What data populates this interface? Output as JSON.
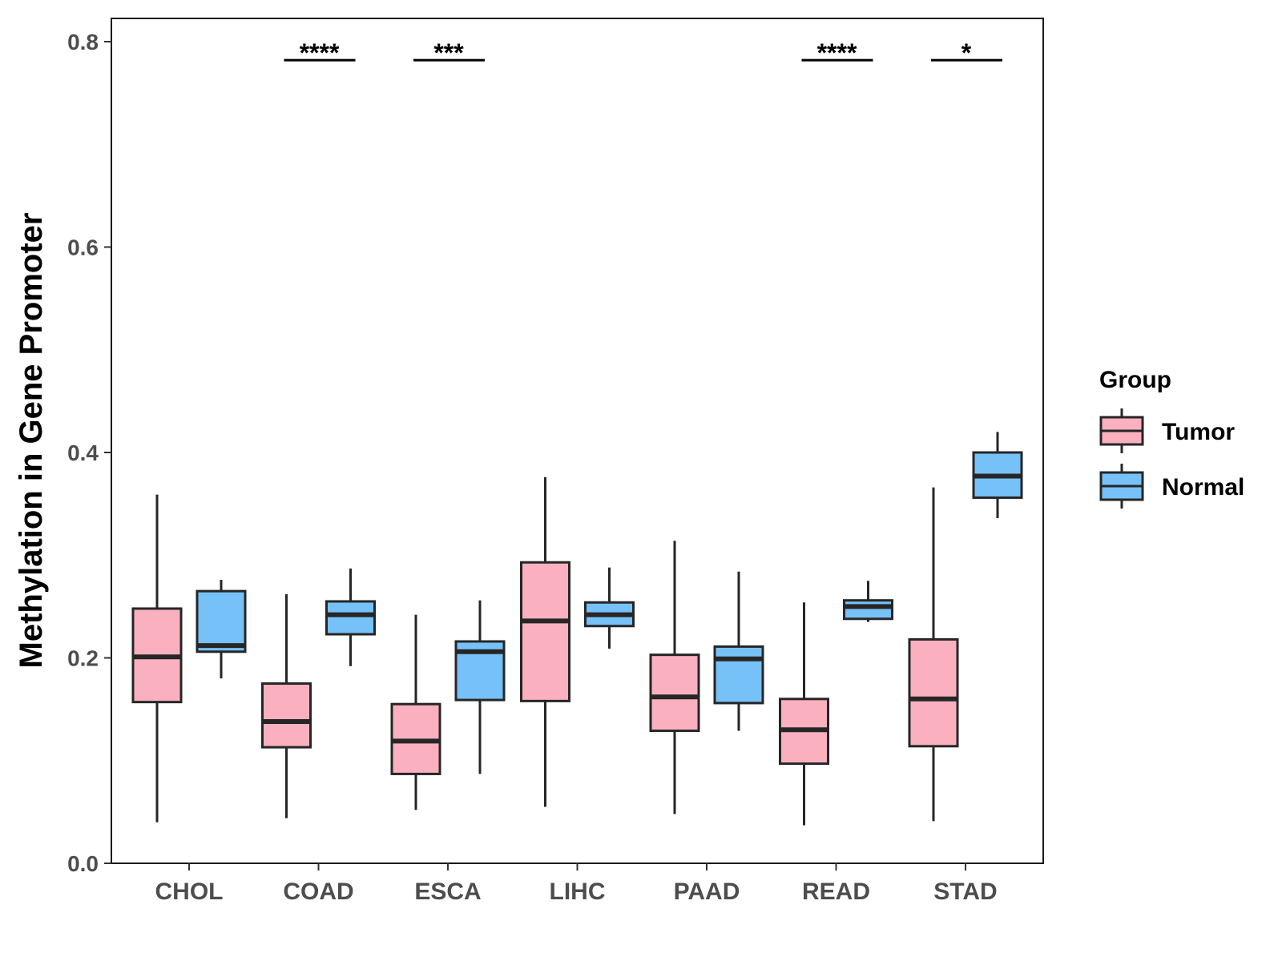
{
  "chart_data": {
    "type": "boxplot",
    "title": "",
    "xlabel": "",
    "ylabel": "Methylation in Gene Promoter",
    "ylim": [
      0,
      0.82
    ],
    "yticks": [
      "0.0",
      "0.2",
      "0.4",
      "0.6",
      "0.8"
    ],
    "ytick_values": [
      0,
      0.2,
      0.4,
      0.6,
      0.8
    ],
    "categories": [
      "CHOL",
      "COAD",
      "ESCA",
      "LIHC",
      "PAAD",
      "READ",
      "STAD"
    ],
    "legend": {
      "title": "Group",
      "position": "right",
      "entries": [
        {
          "name": "Tumor",
          "color": "#FBB0C0"
        },
        {
          "name": "Normal",
          "color": "#76C1F7"
        }
      ]
    },
    "series": [
      {
        "name": "Tumor",
        "color": "#FBB0C0",
        "boxes": [
          {
            "min": 0.04,
            "q1": 0.157,
            "median": 0.201,
            "q3": 0.248,
            "max": 0.359
          },
          {
            "min": 0.044,
            "q1": 0.113,
            "median": 0.138,
            "q3": 0.175,
            "max": 0.262
          },
          {
            "min": 0.052,
            "q1": 0.087,
            "median": 0.119,
            "q3": 0.155,
            "max": 0.242
          },
          {
            "min": 0.055,
            "q1": 0.158,
            "median": 0.236,
            "q3": 0.293,
            "max": 0.376
          },
          {
            "min": 0.048,
            "q1": 0.129,
            "median": 0.162,
            "q3": 0.203,
            "max": 0.314
          },
          {
            "min": 0.037,
            "q1": 0.097,
            "median": 0.13,
            "q3": 0.16,
            "max": 0.254
          },
          {
            "min": 0.041,
            "q1": 0.114,
            "median": 0.16,
            "q3": 0.218,
            "max": 0.366
          }
        ]
      },
      {
        "name": "Normal",
        "color": "#76C1F7",
        "boxes": [
          {
            "min": 0.18,
            "q1": 0.206,
            "median": 0.212,
            "q3": 0.265,
            "max": 0.276
          },
          {
            "min": 0.192,
            "q1": 0.223,
            "median": 0.242,
            "q3": 0.255,
            "max": 0.287
          },
          {
            "min": 0.087,
            "q1": 0.159,
            "median": 0.206,
            "q3": 0.216,
            "max": 0.256
          },
          {
            "min": 0.209,
            "q1": 0.231,
            "median": 0.242,
            "q3": 0.254,
            "max": 0.288
          },
          {
            "min": 0.129,
            "q1": 0.156,
            "median": 0.199,
            "q3": 0.211,
            "max": 0.284
          },
          {
            "min": 0.235,
            "q1": 0.238,
            "median": 0.25,
            "q3": 0.256,
            "max": 0.275
          },
          {
            "min": 0.336,
            "q1": 0.356,
            "median": 0.377,
            "q3": 0.4,
            "max": 0.42
          }
        ]
      }
    ],
    "annotations": [
      {
        "category": "COAD",
        "label": "****",
        "y": 0.782
      },
      {
        "category": "ESCA",
        "label": "***",
        "y": 0.782
      },
      {
        "category": "READ",
        "label": "****",
        "y": 0.782
      },
      {
        "category": "STAD",
        "label": "*",
        "y": 0.782
      }
    ]
  }
}
